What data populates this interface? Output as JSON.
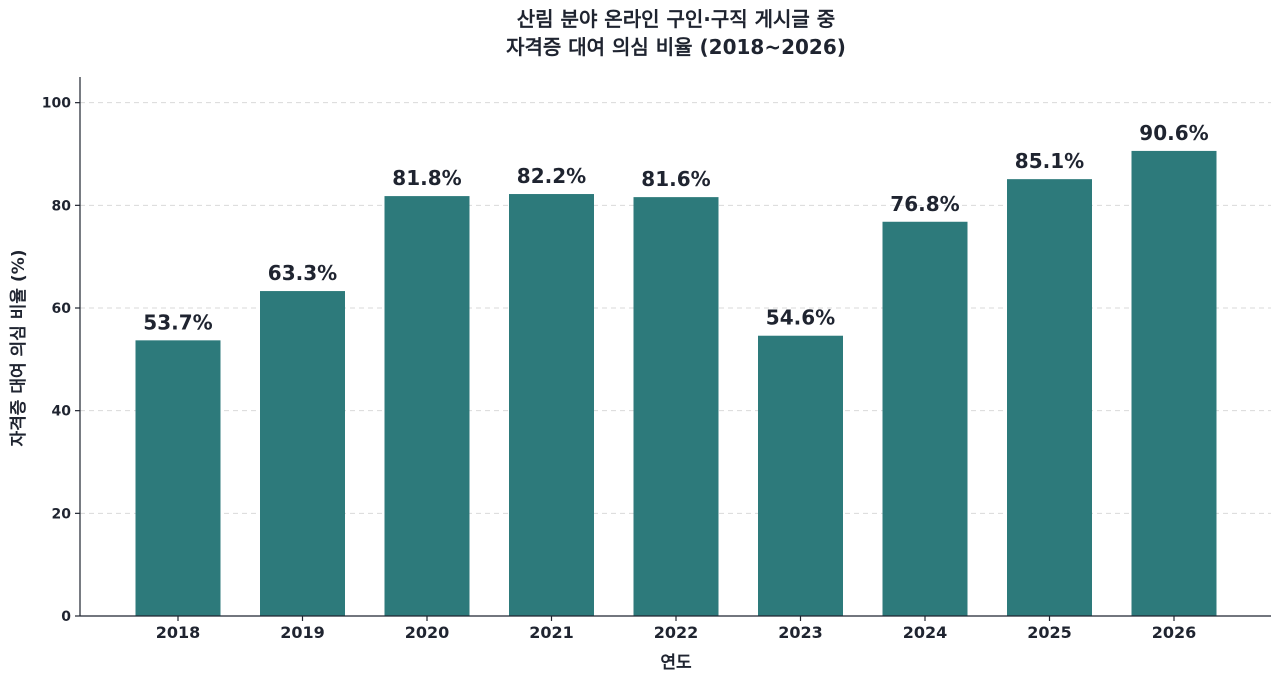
{
  "chart_data": {
    "type": "bar",
    "title_lines": [
      "산림 분야 온라인 구인·구직 게시글 중",
      "자격증 대여 의심 비율 (2018~2026)"
    ],
    "xlabel": "연도",
    "ylabel": "자격증 대여 의심 비율 (%)",
    "categories": [
      "2018",
      "2019",
      "2020",
      "2021",
      "2022",
      "2023",
      "2024",
      "2025",
      "2026"
    ],
    "values": [
      53.7,
      63.3,
      81.8,
      82.2,
      81.6,
      54.6,
      76.8,
      85.1,
      90.6
    ],
    "data_labels": [
      "53.7%",
      "63.3%",
      "81.8%",
      "82.2%",
      "81.6%",
      "54.6%",
      "76.8%",
      "85.1%",
      "90.6%"
    ],
    "ylim": [
      0,
      105
    ],
    "yticks": [
      0,
      20,
      40,
      60,
      80,
      100
    ],
    "grid": "y-dashed",
    "legend": "none",
    "bar_color": "#2d7a7b"
  }
}
